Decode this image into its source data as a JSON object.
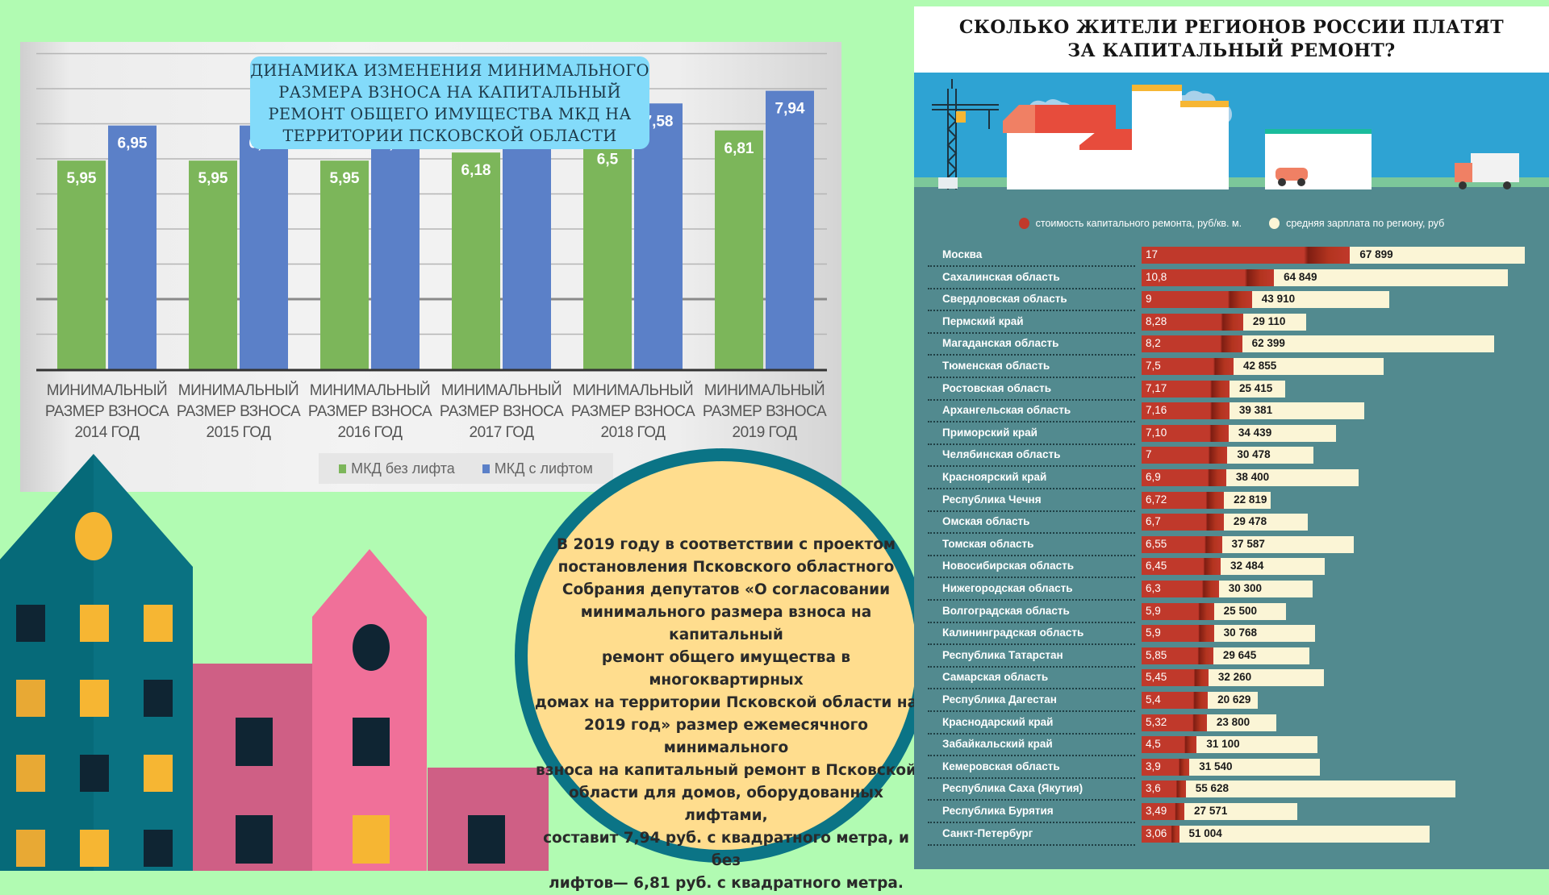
{
  "left_chart": {
    "title_lines": [
      "ДИНАМИКА ИЗМЕНЕНИЯ  МИНИМАЛЬНОГО",
      "РАЗМЕРА ВЗНОСА НА КАПИТАЛЬНЫЙ",
      "РЕМОНТ ОБЩЕГО ИМУЩЕСТВА МКД НА",
      "ТЕРРИТОРИИ ПСКОВСКОЙ ОБЛАСТИ"
    ],
    "legend": [
      {
        "label": "МКД без лифта",
        "color": "#7cb65a"
      },
      {
        "label": "МКД с лифтом",
        "color": "#5b80c8"
      }
    ]
  },
  "chart_data": [
    {
      "type": "bar",
      "title": "ДИНАМИКА ИЗМЕНЕНИЯ МИНИМАЛЬНОГО РАЗМЕРА ВЗНОСА НА КАПИТАЛЬНЫЙ РЕМОНТ ОБЩЕГО ИМУЩЕСТВА МКД НА ТЕРРИТОРИИ ПСКОВСКОЙ ОБЛАСТИ",
      "categories": [
        [
          "МИНИМАЛЬНЫЙ",
          "РАЗМЕР ВЗНОСА",
          "2014 ГОД"
        ],
        [
          "МИНИМАЛЬНЫЙ",
          "РАЗМЕР ВЗНОСА",
          "2015 ГОД"
        ],
        [
          "МИНИМАЛЬНЫЙ",
          "РАЗМЕР ВЗНОСА",
          "2016 ГОД"
        ],
        [
          "МИНИМАЛЬНЫЙ",
          "РАЗМЕР ВЗНОСА",
          "2017 ГОД"
        ],
        [
          "МИНИМАЛЬНЫЙ",
          "РАЗМЕР ВЗНОСА",
          "2018 ГОД"
        ],
        [
          "МИНИМАЛЬНЫЙ",
          "РАЗМЕР ВЗНОСА",
          "2019 ГОД"
        ]
      ],
      "series": [
        {
          "name": "МКД без лифта",
          "color": "#7cb65a",
          "values": [
            5.95,
            5.95,
            5.95,
            6.18,
            6.5,
            6.81
          ],
          "labels": [
            "5,95",
            "5,95",
            "5,95",
            "6,18",
            "6,5",
            "6,81"
          ]
        },
        {
          "name": "МКД с лифтом",
          "color": "#5b80c8",
          "values": [
            6.95,
            6.95,
            6.95,
            7.21,
            7.58,
            7.94
          ],
          "labels": [
            "6,95",
            "6,95",
            "6,95",
            "7,21",
            "7,58",
            "7,94"
          ]
        }
      ],
      "xlabel": "",
      "ylabel": "",
      "ylim": [
        0,
        9
      ],
      "grid": true,
      "legend_position": "bottom"
    },
    {
      "type": "bar",
      "title": "СКОЛЬКО ЖИТЕЛИ РЕГИОНОВ РОССИИ ПЛАТЯТ ЗА КАПИТАЛЬНЫЙ РЕМОНТ?",
      "orientation": "horizontal",
      "categories": [
        "Москва",
        "Сахалинская область",
        "Свердловская область",
        "Пермский край",
        "Магаданская область",
        "Тюменская область",
        "Ростовская область",
        "Архангельская область",
        "Приморский край",
        "Челябинская область",
        "Красноярский край",
        "Республика Чечня",
        "Омская область",
        "Томская область",
        "Новосибирская область",
        "Нижегородская область",
        "Волгоградская область",
        "Калининградская область",
        "Республика Татарстан",
        "Самарская область",
        "Республика Дагестан",
        "Краснодарский край",
        "Забайкальский край",
        "Кемеровская область",
        "Республика Саха (Якутия)",
        "Республика Бурятия",
        "Санкт-Петербург"
      ],
      "series": [
        {
          "name": "стоимость капитального ремонта, руб/кв. м.",
          "color": "#c0392b",
          "values": [
            17,
            10.8,
            9,
            8.28,
            8.2,
            7.5,
            7.17,
            7.16,
            7.1,
            7,
            6.9,
            6.72,
            6.7,
            6.55,
            6.45,
            6.3,
            5.9,
            5.9,
            5.85,
            5.45,
            5.4,
            5.32,
            4.5,
            3.9,
            3.6,
            3.49,
            3.06
          ],
          "labels": [
            "17",
            "10,8",
            "9",
            "8,28",
            "8,2",
            "7,5",
            "7,17",
            "7,16",
            "7,10",
            "7",
            "6,9",
            "6,72",
            "6,7",
            "6,55",
            "6,45",
            "6,3",
            "5,9",
            "5,9",
            "5,85",
            "5,45",
            "5,4",
            "5,32",
            "4,5",
            "3,9",
            "3,6",
            "3,49",
            "3,06"
          ]
        },
        {
          "name": "средняя зарплата по региону, руб",
          "color": "#fbf5d6",
          "values": [
            67899,
            64849,
            43910,
            29110,
            62399,
            42855,
            25415,
            39381,
            34439,
            30478,
            38400,
            22819,
            29478,
            37587,
            32484,
            30300,
            25500,
            30768,
            29645,
            32260,
            20629,
            23800,
            31100,
            31540,
            55628,
            27571,
            51004
          ],
          "labels": [
            "67 899",
            "64 849",
            "43 910",
            "29 110",
            "62 399",
            "42 855",
            "25 415",
            "39 381",
            "34 439",
            "30 478",
            "38 400",
            "22 819",
            "29 478",
            "37 587",
            "32 484",
            "30 300",
            "25 500",
            "30 768",
            "29 645",
            "32 260",
            "20 629",
            "23 800",
            "31 100",
            "31 540",
            "55 628",
            "27 571",
            "51 004"
          ]
        }
      ],
      "legend_position": "top"
    }
  ],
  "info_circle": {
    "lines": [
      "В 2019 году в соответствии с проектом",
      "постановления Псковского областного",
      "Собрания депутатов «О согласовании",
      "минимального размера взноса на капитальный",
      "ремонт общего имущества в многоквартирных",
      "домах на территории Псковской области на",
      "2019 год» размер ежемесячного минимального",
      "взноса на капитальный ремонт в Псковской",
      "области для домов, оборудованных лифтами,",
      "составит 7,94 руб. с квадратного метра, и без",
      "лифтов— 6,81 руб. с квадратного метра."
    ]
  },
  "right_infographic": {
    "title_lines": [
      "СКОЛЬКО ЖИТЕЛИ РЕГИОНОВ РОССИИ ПЛАТЯТ",
      "ЗА КАПИТАЛЬНЫЙ РЕМОНТ?"
    ],
    "legend": [
      {
        "label": "стоимость капитального ремонта, руб/кв. м.",
        "color": "#c0392b"
      },
      {
        "label": "средняя зарплата по региону, руб",
        "color": "#fbf5d6"
      }
    ]
  }
}
